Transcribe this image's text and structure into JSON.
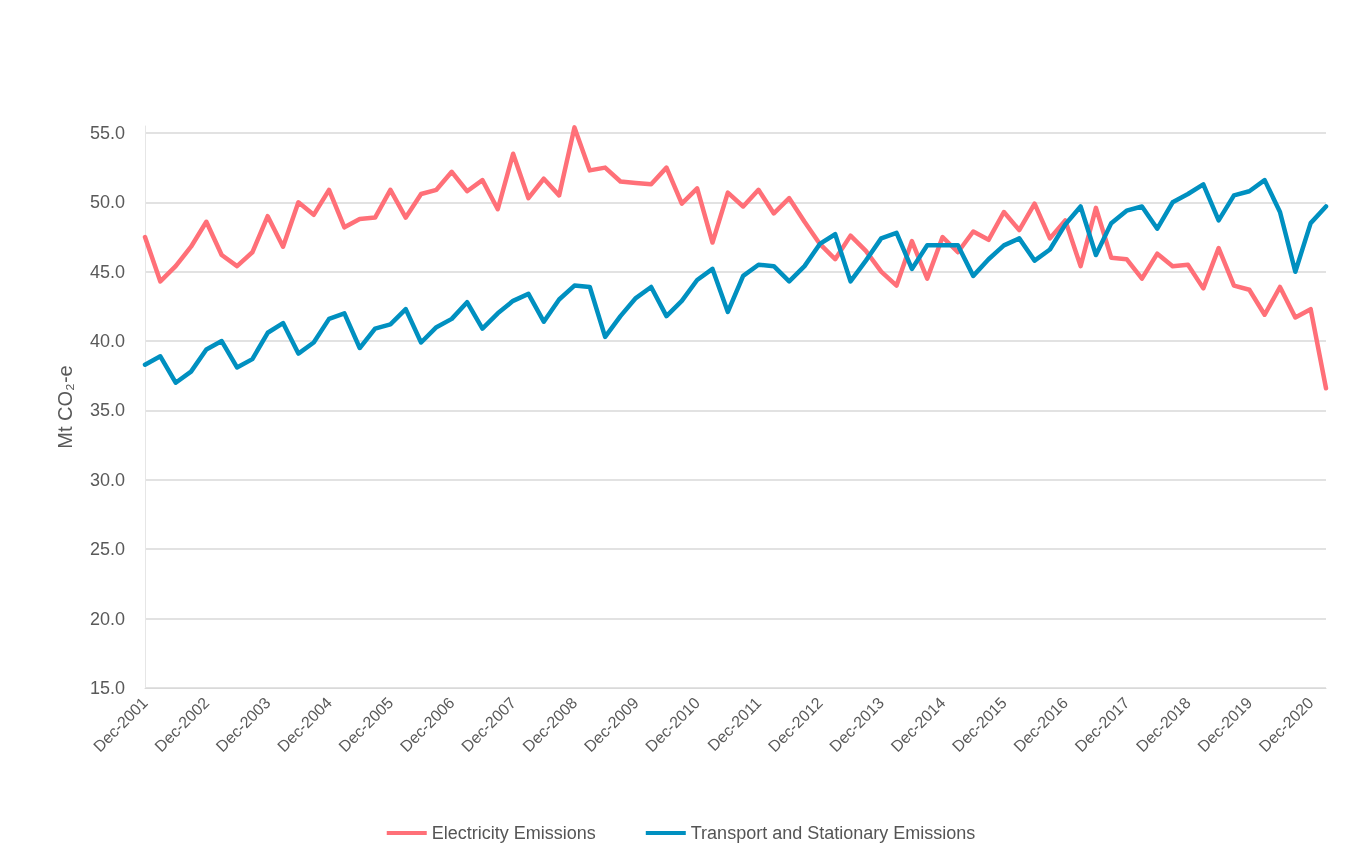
{
  "chart_data": {
    "type": "line",
    "ylabel": "Mt CO₂-e",
    "categories": [
      "Dec-2001",
      null,
      null,
      null,
      "Dec-2002",
      null,
      null,
      null,
      "Dec-2003",
      null,
      null,
      null,
      "Dec-2004",
      null,
      null,
      null,
      "Dec-2005",
      null,
      null,
      null,
      "Dec-2006",
      null,
      null,
      null,
      "Dec-2007",
      null,
      null,
      null,
      "Dec-2008",
      null,
      null,
      null,
      "Dec-2009",
      null,
      null,
      null,
      "Dec-2010",
      null,
      null,
      null,
      "Dec-2011",
      null,
      null,
      null,
      "Dec-2012",
      null,
      null,
      null,
      "Dec-2013",
      null,
      null,
      null,
      "Dec-2014",
      null,
      null,
      null,
      "Dec-2015",
      null,
      null,
      null,
      "Dec-2016",
      null,
      null,
      null,
      "Dec-2017",
      null,
      null,
      null,
      "Dec-2018",
      null,
      null,
      null,
      "Dec-2019",
      null,
      null,
      null,
      "Dec-2020",
      null
    ],
    "series": [
      {
        "name": "Electricity Emissions",
        "color": "#ff7078",
        "values": [
          47.5,
          44.3,
          45.4,
          46.8,
          48.6,
          46.2,
          45.4,
          46.4,
          49.0,
          46.8,
          50.0,
          49.1,
          50.9,
          48.2,
          48.8,
          48.9,
          50.9,
          48.9,
          50.6,
          50.9,
          52.2,
          50.8,
          51.6,
          49.5,
          53.5,
          50.3,
          51.7,
          50.5,
          55.4,
          52.3,
          52.5,
          51.5,
          51.4,
          51.3,
          52.5,
          49.9,
          51.0,
          47.1,
          50.7,
          49.7,
          50.9,
          49.2,
          50.3,
          48.6,
          47.0,
          45.9,
          47.6,
          46.5,
          45.0,
          44.0,
          47.2,
          44.5,
          47.5,
          46.4,
          47.9,
          47.3,
          49.3,
          48.0,
          49.9,
          47.4,
          48.7,
          45.4,
          49.6,
          46.0,
          45.9,
          44.5,
          46.3,
          45.4,
          45.5,
          43.8,
          46.7,
          44.0,
          43.7,
          41.9,
          43.9,
          41.7,
          42.3,
          36.6
        ]
      },
      {
        "name": "Transport and Stationary Emissions",
        "color": "#0090c0",
        "values": [
          38.3,
          38.9,
          37.0,
          37.8,
          39.4,
          40.0,
          38.1,
          38.7,
          40.6,
          41.3,
          39.1,
          39.9,
          41.6,
          42.0,
          39.5,
          40.9,
          41.2,
          42.3,
          39.9,
          41.0,
          41.6,
          42.8,
          40.9,
          42.0,
          42.9,
          43.4,
          41.4,
          43.0,
          44.0,
          43.9,
          40.3,
          41.8,
          43.1,
          43.9,
          41.8,
          42.9,
          44.4,
          45.2,
          42.1,
          44.7,
          45.5,
          45.4,
          44.3,
          45.4,
          47.0,
          47.7,
          44.3,
          45.8,
          47.4,
          47.8,
          45.2,
          46.9,
          46.9,
          46.9,
          44.7,
          45.9,
          46.9,
          47.4,
          45.8,
          46.6,
          48.4,
          49.7,
          46.2,
          48.5,
          49.4,
          49.7,
          48.1,
          50.0,
          50.6,
          51.3,
          48.7,
          50.5,
          50.8,
          51.6,
          49.3,
          45.0,
          48.5,
          49.7
        ]
      }
    ],
    "ylim": [
      15,
      55.5
    ],
    "yticks": [
      {
        "value": 15,
        "label": "15.0"
      },
      {
        "value": 20,
        "label": "20.0"
      },
      {
        "value": 25,
        "label": "25.0"
      },
      {
        "value": 30,
        "label": "30.0"
      },
      {
        "value": 35,
        "label": "35.0"
      },
      {
        "value": 40,
        "label": "40.0"
      },
      {
        "value": 45,
        "label": "45.0"
      },
      {
        "value": 50,
        "label": "50.0"
      },
      {
        "value": 55,
        "label": "55.0"
      }
    ],
    "grid": "y",
    "legend": "bottom",
    "marker": "none",
    "line_style": "solid"
  }
}
